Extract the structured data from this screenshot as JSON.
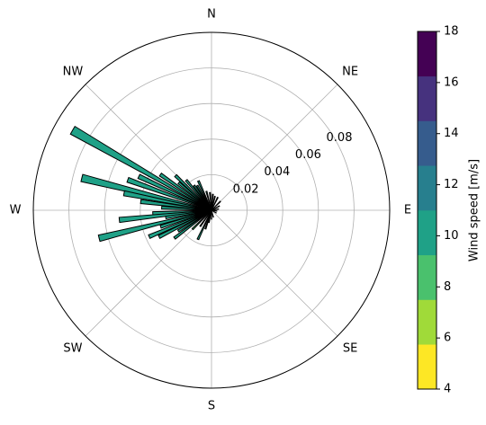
{
  "chart_data": {
    "type": "windrose",
    "directions": [
      "N",
      "NE",
      "E",
      "SE",
      "S",
      "SW",
      "W",
      "NW"
    ],
    "radial_ticks": [
      "0.02",
      "0.04",
      "0.06",
      "0.08"
    ],
    "radial_tick_values": [
      0.02,
      0.04,
      0.06,
      0.08
    ],
    "r_max": 0.1,
    "grid": true,
    "colorbar": {
      "label": "Wind speed [m/s]",
      "ticks": [
        "4",
        "6",
        "8",
        "10",
        "12",
        "14",
        "16",
        "18"
      ],
      "range": [
        4,
        18
      ],
      "colors": [
        "#fde725",
        "#a0da39",
        "#4ac16d",
        "#1fa187",
        "#277f8e",
        "#365c8d",
        "#46327e",
        "#440154"
      ],
      "edges": [
        4,
        5.75,
        7.5,
        9.25,
        11,
        12.75,
        14.5,
        16.25,
        18
      ]
    },
    "bars": [
      {
        "direction_deg": 300,
        "frequency": 0.09,
        "speed": 10.2
      },
      {
        "direction_deg": 290,
        "frequency": 0.05,
        "speed": 10.0
      },
      {
        "direction_deg": 284,
        "frequency": 0.075,
        "speed": 10.1
      },
      {
        "direction_deg": 281,
        "frequency": 0.05,
        "speed": 10.0
      },
      {
        "direction_deg": 277,
        "frequency": 0.04,
        "speed": 9.8
      },
      {
        "direction_deg": 273,
        "frequency": 0.028,
        "speed": 9.6
      },
      {
        "direction_deg": 267,
        "frequency": 0.033,
        "speed": 9.8
      },
      {
        "direction_deg": 264,
        "frequency": 0.052,
        "speed": 10.0
      },
      {
        "direction_deg": 261,
        "frequency": 0.026,
        "speed": 9.5
      },
      {
        "direction_deg": 256,
        "frequency": 0.065,
        "speed": 10.1
      },
      {
        "direction_deg": 252,
        "frequency": 0.03,
        "speed": 9.6
      },
      {
        "direction_deg": 247,
        "frequency": 0.038,
        "speed": 9.8
      },
      {
        "direction_deg": 243,
        "frequency": 0.033,
        "speed": 9.7
      },
      {
        "direction_deg": 238,
        "frequency": 0.022,
        "speed": 9.4
      },
      {
        "direction_deg": 233,
        "frequency": 0.026,
        "speed": 9.5
      },
      {
        "direction_deg": 225,
        "frequency": 0.015,
        "speed": 9.2
      },
      {
        "direction_deg": 215,
        "frequency": 0.011,
        "speed": 9.0
      },
      {
        "direction_deg": 205,
        "frequency": 0.018,
        "speed": 9.3
      },
      {
        "direction_deg": 198,
        "frequency": 0.011,
        "speed": 9.0
      },
      {
        "direction_deg": 192,
        "frequency": 0.007,
        "speed": 8.9
      },
      {
        "direction_deg": 180,
        "frequency": 0.005,
        "speed": 8.8
      },
      {
        "direction_deg": 165,
        "frequency": 0.004,
        "speed": 8.7
      },
      {
        "direction_deg": 120,
        "frequency": 0.003,
        "speed": 8.6
      },
      {
        "direction_deg": 98,
        "frequency": 0.003,
        "speed": 8.6
      },
      {
        "direction_deg": 80,
        "frequency": 0.004,
        "speed": 8.7
      },
      {
        "direction_deg": 62,
        "frequency": 0.005,
        "speed": 8.8
      },
      {
        "direction_deg": 45,
        "frequency": 0.007,
        "speed": 9.0
      },
      {
        "direction_deg": 26,
        "frequency": 0.008,
        "speed": 9.0
      },
      {
        "direction_deg": 14,
        "frequency": 0.008,
        "speed": 9.1
      },
      {
        "direction_deg": 5,
        "frequency": 0.009,
        "speed": 9.1
      },
      {
        "direction_deg": 355,
        "frequency": 0.01,
        "speed": 9.2
      },
      {
        "direction_deg": 345,
        "frequency": 0.011,
        "speed": 9.3
      },
      {
        "direction_deg": 336,
        "frequency": 0.018,
        "speed": 9.5
      },
      {
        "direction_deg": 330,
        "frequency": 0.016,
        "speed": 9.4
      },
      {
        "direction_deg": 325,
        "frequency": 0.017,
        "speed": 9.5
      },
      {
        "direction_deg": 320,
        "frequency": 0.022,
        "speed": 9.6
      },
      {
        "direction_deg": 314,
        "frequency": 0.028,
        "speed": 9.7
      },
      {
        "direction_deg": 310,
        "frequency": 0.024,
        "speed": 9.6
      },
      {
        "direction_deg": 305,
        "frequency": 0.035,
        "speed": 9.8
      },
      {
        "direction_deg": 295,
        "frequency": 0.045,
        "speed": 9.9
      }
    ]
  }
}
